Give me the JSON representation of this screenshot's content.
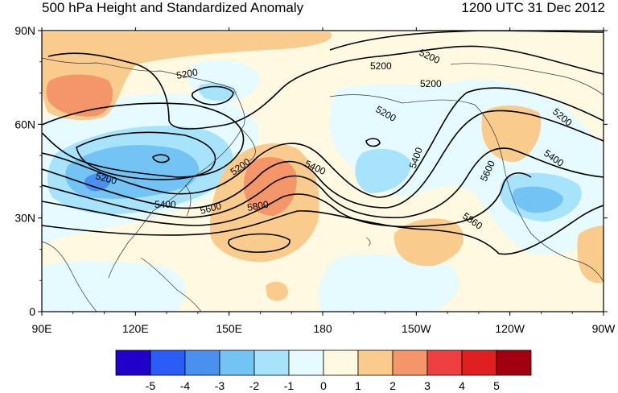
{
  "title": "500 hPa Height and Standardized Anomaly",
  "valid_time": "1200 UTC 31 Dec 2012",
  "map": {
    "projection": "cylindrical equidistant",
    "lon_labels": [
      "90E",
      "120E",
      "150E",
      "180",
      "150W",
      "120W",
      "90W"
    ],
    "lat_labels": [
      "0",
      "30N",
      "60N",
      "90N"
    ],
    "contour_units": "geopotential meters",
    "contour_interval": 200,
    "contour_labels": [
      "5200",
      "5200",
      "5200",
      "5200",
      "5200",
      "5200",
      "5200",
      "5200",
      "5400",
      "5400",
      "5400",
      "5400",
      "5600",
      "5600",
      "5800",
      "5860"
    ]
  },
  "colorbar": {
    "levels": [
      "-5",
      "-4",
      "-3",
      "-2",
      "-1",
      "0",
      "1",
      "2",
      "3",
      "4",
      "5"
    ],
    "colors": [
      "#2200cc",
      "#2b5cf5",
      "#4a90ee",
      "#74c3f5",
      "#a7e3fb",
      "#e5fbff",
      "#fff9e2",
      "#f9cc8e",
      "#f5966a",
      "#ee4040",
      "#e02020",
      "#a00010"
    ]
  }
}
